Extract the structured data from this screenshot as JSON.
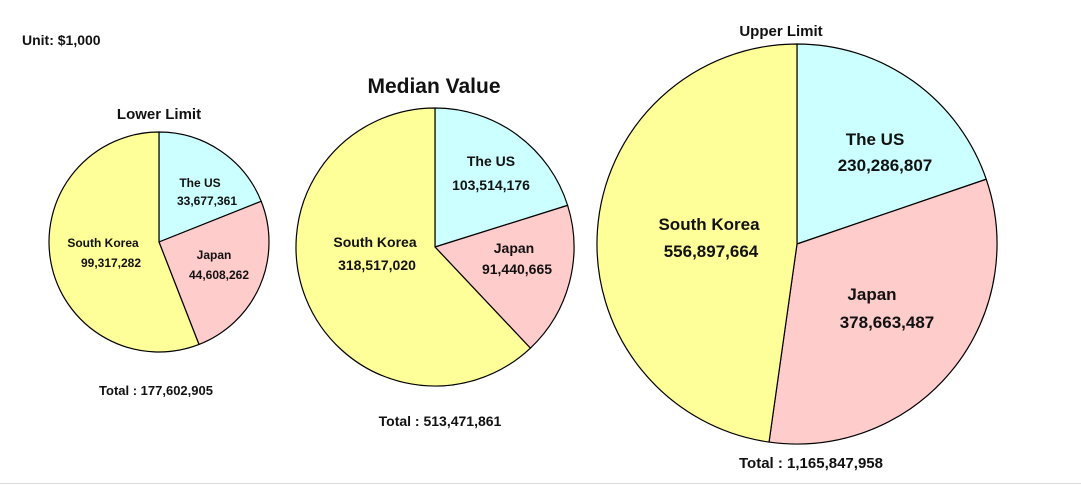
{
  "unit_label": "Unit: $1,000",
  "colors": {
    "south_korea": "#ffff99",
    "the_us": "#ccffff",
    "japan": "#ffcccc",
    "outline": "#000000"
  },
  "chart_data": [
    {
      "type": "pie",
      "title": "Lower Limit",
      "total_label": "Total : 177,602,905",
      "total": 177602905,
      "slices": [
        {
          "name": "The US",
          "value": 33677361,
          "value_label": "33,677,361",
          "color": "#ccffff"
        },
        {
          "name": "Japan",
          "value": 44608262,
          "value_label": "44,608,262",
          "color": "#ffcccc"
        },
        {
          "name": "South Korea",
          "value": 99317282,
          "value_label": "99,317,282",
          "color": "#ffff99"
        }
      ]
    },
    {
      "type": "pie",
      "title": "Median Value",
      "total_label": "Total : 513,471,861",
      "total": 513471861,
      "slices": [
        {
          "name": "The US",
          "value": 103514176,
          "value_label": "103,514,176",
          "color": "#ccffff"
        },
        {
          "name": "Japan",
          "value": 91440665,
          "value_label": "91,440,665",
          "color": "#ffcccc"
        },
        {
          "name": "South Korea",
          "value": 318517020,
          "value_label": "318,517,020",
          "color": "#ffff99"
        }
      ]
    },
    {
      "type": "pie",
      "title": "Upper Limit",
      "total_label": "Total : 1,165,847,958",
      "total": 1165847958,
      "slices": [
        {
          "name": "The US",
          "value": 230286807,
          "value_label": "230,286,807",
          "color": "#ccffff"
        },
        {
          "name": "Japan",
          "value": 378663487,
          "value_label": "378,663,487",
          "color": "#ffcccc"
        },
        {
          "name": "South Korea",
          "value": 556897664,
          "value_label": "556,897,664",
          "color": "#ffff99"
        }
      ]
    }
  ]
}
